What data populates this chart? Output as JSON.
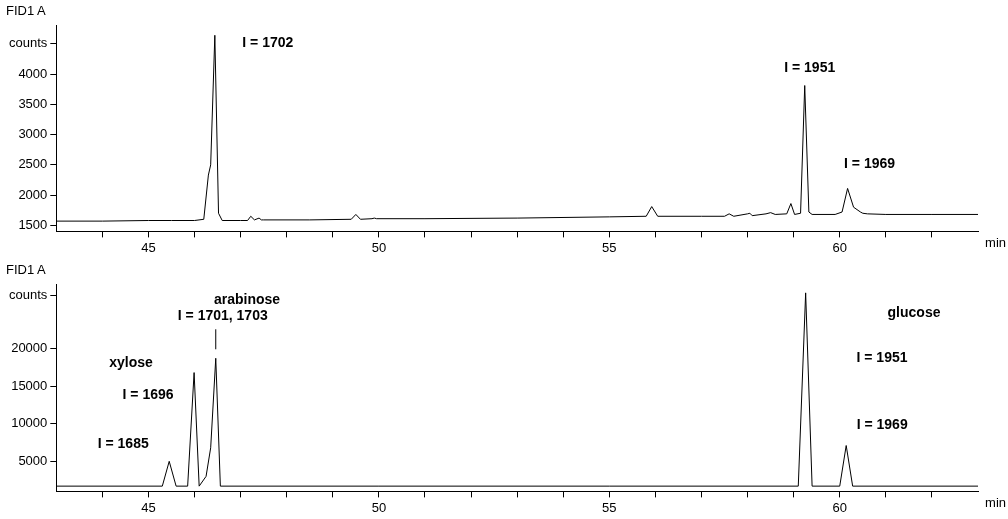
{
  "chart_data": [
    {
      "type": "line",
      "title": "FID1 A",
      "xlabel": "min",
      "x": [
        43,
        44,
        45,
        45.5,
        46.0,
        46.2,
        46.3,
        46.35,
        46.44,
        46.52,
        46.6,
        47.0,
        47.15,
        47.22,
        47.3,
        47.4,
        47.45,
        47.5,
        48.5,
        49.4,
        49.5,
        49.6,
        49.85,
        49.9,
        49.95,
        51,
        53,
        55,
        55.8,
        55.92,
        56.05,
        57,
        57.5,
        57.6,
        57.7,
        58.0,
        58.05,
        58.1,
        58.4,
        58.5,
        58.6,
        58.85,
        58.94,
        59.02,
        59.15,
        59.24,
        59.33,
        59.4,
        59.9,
        60.05,
        60.17,
        60.3,
        60.45,
        60.5,
        60.6,
        61,
        62,
        63
      ],
      "series": [
        {
          "color": "#000000",
          "values": [
            1570,
            1570,
            1580,
            1580,
            1580,
            1600,
            2330,
            2500,
            4640,
            1700,
            1580,
            1580,
            1580,
            1650,
            1590,
            1620,
            1590,
            1590,
            1590,
            1600,
            1680,
            1600,
            1610,
            1620,
            1610,
            1610,
            1620,
            1640,
            1650,
            1810,
            1650,
            1650,
            1650,
            1690,
            1650,
            1690,
            1700,
            1660,
            1690,
            1710,
            1680,
            1690,
            1860,
            1680,
            1700,
            3810,
            1720,
            1680,
            1680,
            1720,
            2110,
            1800,
            1720,
            1700,
            1690,
            1680,
            1680,
            1680
          ]
        }
      ],
      "xlim": [
        43,
        63
      ],
      "xticks": [
        {
          "value": 44,
          "label": null
        },
        45,
        {
          "value": 46,
          "label": null
        },
        {
          "value": 47,
          "label": null
        },
        {
          "value": 48,
          "label": null
        },
        {
          "value": 49,
          "label": null
        },
        50,
        {
          "value": 51,
          "label": null
        },
        {
          "value": 52,
          "label": null
        },
        {
          "value": 53,
          "label": null
        },
        {
          "value": 54,
          "label": null
        },
        55,
        {
          "value": 56,
          "label": null
        },
        {
          "value": 57,
          "label": null
        },
        {
          "value": 58,
          "label": null
        },
        {
          "value": 59,
          "label": null
        },
        60,
        {
          "value": 61,
          "label": null
        },
        {
          "value": 62,
          "label": null
        }
      ],
      "ylim": [
        1400,
        4800
      ],
      "yticks": [
        1500,
        2000,
        2500,
        3000,
        3500,
        4000,
        {
          "value": 4500,
          "label": "counts"
        }
      ],
      "grid": false,
      "marker": "none",
      "line_style": "solid",
      "annotations": [
        {
          "text": "I = 1702",
          "x": 46.44,
          "y": 4640
        },
        {
          "text": "I = 1951",
          "x": 59.24,
          "y": 3810
        },
        {
          "text": "I = 1969",
          "x": 60.17,
          "y": 2110
        }
      ]
    },
    {
      "type": "line",
      "title": "FID1 A",
      "xlabel": "min",
      "x": [
        43,
        45.3,
        45.45,
        45.6,
        45.85,
        45.99,
        46.1,
        46.25,
        46.35,
        46.46,
        46.56,
        50,
        55,
        59.1,
        59.26,
        59.4,
        60.0,
        60.14,
        60.28,
        63
      ],
      "series": [
        {
          "color": "#000000",
          "values": [
            1700,
            1700,
            5000,
            1700,
            1700,
            16800,
            1700,
            3000,
            6800,
            18700,
            1700,
            1700,
            1700,
            1700,
            27400,
            1700,
            1700,
            7100,
            1700,
            1700
          ]
        }
      ],
      "xlim": [
        43,
        63
      ],
      "xticks": [
        {
          "value": 44,
          "label": null
        },
        45,
        {
          "value": 46,
          "label": null
        },
        {
          "value": 47,
          "label": null
        },
        {
          "value": 48,
          "label": null
        },
        {
          "value": 49,
          "label": null
        },
        50,
        {
          "value": 51,
          "label": null
        },
        {
          "value": 52,
          "label": null
        },
        {
          "value": 53,
          "label": null
        },
        {
          "value": 54,
          "label": null
        },
        55,
        {
          "value": 56,
          "label": null
        },
        {
          "value": 57,
          "label": null
        },
        {
          "value": 58,
          "label": null
        },
        {
          "value": 59,
          "label": null
        },
        60,
        {
          "value": 61,
          "label": null
        },
        {
          "value": 62,
          "label": null
        }
      ],
      "ylim": [
        1000,
        28500
      ],
      "yticks": [
        5000,
        10000,
        15000,
        20000,
        {
          "value": 27000,
          "label": "counts"
        }
      ],
      "grid": false,
      "marker": "none",
      "line_style": "solid",
      "annotations": [
        {
          "text": "xylose",
          "x": 45.99,
          "y": 16800
        },
        {
          "text": "I = 1696",
          "x": 45.99,
          "y": 16800
        },
        {
          "text": "I = 1685",
          "x": 45.45,
          "y": 5000
        },
        "arabinose",
        {
          "text": "I = 1701, 1703",
          "x": 46.46,
          "y": 18700
        },
        "glucose",
        "I = 1951",
        {
          "text": "I = 1969",
          "x": 60.14,
          "y": 7100
        }
      ]
    }
  ]
}
